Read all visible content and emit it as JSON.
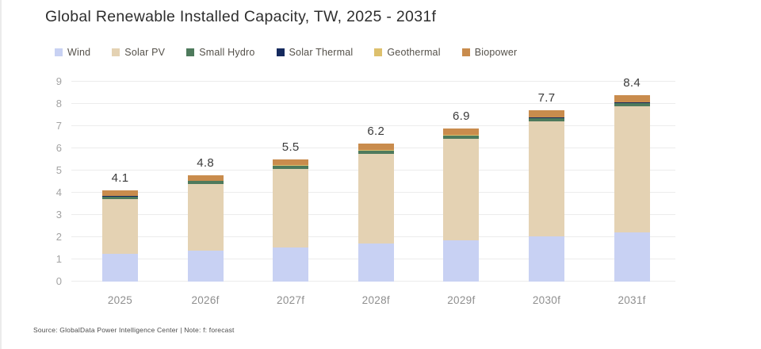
{
  "title": "Global Renewable Installed Capacity, TW, 2025 - 2031f",
  "source_note": "Source: GlobalData Power Intelligence Center | Note: f: forecast",
  "colors": {
    "wind": "#c8d1f3",
    "solar_pv": "#e4d2b3",
    "small_hydro": "#4e7a5c",
    "solar_thermal": "#152a5e",
    "geothermal": "#ddc06d",
    "biopower": "#c98c4d",
    "grid": "#ececec",
    "tick_text": "#a3a3a3",
    "total_label_text": "#3b3b3b"
  },
  "chart_data": {
    "type": "bar",
    "stacked": true,
    "title": "Global Renewable Installed Capacity, TW, 2025 - 2031f",
    "categories": [
      "2025",
      "2026f",
      "2027f",
      "2028f",
      "2029f",
      "2030f",
      "2031f"
    ],
    "series": [
      {
        "name": "Wind",
        "color": "#c8d1f3",
        "values": [
          1.25,
          1.4,
          1.55,
          1.7,
          1.85,
          2.05,
          2.2
        ]
      },
      {
        "name": "Solar PV",
        "color": "#e4d2b3",
        "values": [
          2.46,
          2.99,
          3.52,
          4.05,
          4.58,
          5.17,
          5.7
        ]
      },
      {
        "name": "Small Hydro",
        "color": "#4e7a5c",
        "values": [
          0.13,
          0.13,
          0.14,
          0.14,
          0.14,
          0.15,
          0.15
        ]
      },
      {
        "name": "Solar Thermal",
        "color": "#152a5e",
        "values": [
          0.01,
          0.01,
          0.01,
          0.01,
          0.01,
          0.01,
          0.01
        ]
      },
      {
        "name": "Geothermal",
        "color": "#ddc06d",
        "values": [
          0.02,
          0.02,
          0.02,
          0.03,
          0.03,
          0.03,
          0.03
        ]
      },
      {
        "name": "Biopower",
        "color": "#c98c4d",
        "values": [
          0.23,
          0.25,
          0.26,
          0.27,
          0.29,
          0.29,
          0.31
        ]
      }
    ],
    "totals": [
      "4.1",
      "4.8",
      "5.5",
      "6.2",
      "6.9",
      "7.7",
      "8.4"
    ],
    "xlabel": "",
    "ylabel": "",
    "ylim": [
      0,
      9
    ],
    "yticks": [
      0,
      1,
      2,
      3,
      4,
      5,
      6,
      7,
      8,
      9
    ],
    "grid": true,
    "legend_position": "top-left"
  }
}
